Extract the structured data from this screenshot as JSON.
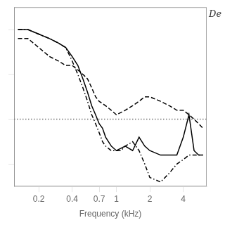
{
  "chart_data": {
    "type": "line",
    "xlabel": "Frequency (kHz)",
    "annotations": [
      {
        "text": "De"
      }
    ],
    "log": "x",
    "xlim": [
      0.12,
      6.5
    ],
    "ylim": [
      -15,
      25
    ],
    "xticks": [
      0.2,
      0.4,
      0.7,
      1,
      2,
      4
    ],
    "yticks": [
      -10,
      0,
      10,
      20
    ],
    "grid": false,
    "tick_labels": "x",
    "hlines": [
      {
        "value": 0,
        "color": "#777777",
        "line_style": "dotted"
      }
    ],
    "series": [
      {
        "x": [
          0.13,
          0.16,
          0.2,
          0.25,
          0.3,
          0.35,
          0.4,
          0.45,
          0.5,
          0.55,
          0.6,
          0.65,
          0.7,
          0.75,
          0.8,
          0.9,
          1.0,
          1.2,
          1.4,
          1.6,
          1.8,
          2.0,
          2.5,
          3.0,
          3.5,
          4.0,
          4.5,
          5.0,
          5.5,
          6.0
        ],
        "values": [
          20,
          20,
          19,
          18,
          17,
          16,
          14,
          12,
          9,
          6,
          3,
          1,
          -1,
          -2,
          -4,
          -6,
          -7,
          -6,
          -7,
          -4,
          -6,
          -7,
          -8,
          -8,
          -8,
          -4,
          1,
          -7,
          -8,
          -8
        ],
        "color": "#000000",
        "line_style": "solid"
      },
      {
        "x": [
          0.13,
          0.16,
          0.2,
          0.25,
          0.3,
          0.35,
          0.4,
          0.45,
          0.5,
          0.55,
          0.6,
          0.65,
          0.7,
          0.8,
          0.9,
          1.0,
          1.2,
          1.4,
          1.6,
          1.8,
          2.0,
          2.5,
          3.0,
          3.5,
          4.0,
          4.5,
          5.0,
          5.5,
          6.0
        ],
        "values": [
          18,
          18,
          16,
          14,
          13,
          12,
          12,
          11,
          10,
          9,
          7,
          5,
          4,
          3,
          2,
          1,
          2,
          3,
          4,
          5,
          5,
          4,
          3,
          2,
          2,
          1,
          0,
          -1,
          -2
        ],
        "color": "#000000",
        "line_style": "dashed"
      },
      {
        "x": [
          0.13,
          0.16,
          0.2,
          0.25,
          0.3,
          0.35,
          0.4,
          0.45,
          0.5,
          0.55,
          0.6,
          0.65,
          0.7,
          0.75,
          0.8,
          0.9,
          1.0,
          1.1,
          1.2,
          1.4,
          1.6,
          1.8,
          2.0,
          2.5,
          3.0,
          3.5,
          4.0,
          4.5,
          5.0,
          5.5,
          6.0
        ],
        "values": [
          20,
          20,
          19,
          18,
          17,
          16,
          13,
          10,
          7,
          4,
          1,
          -1,
          -3,
          -5,
          -6,
          -7,
          -7,
          -7,
          -6,
          -5,
          -7,
          -10,
          -13,
          -14,
          -12,
          -10,
          -9,
          -8,
          -8,
          -8,
          -8
        ],
        "color": "#000000",
        "line_style": "dashdot"
      }
    ]
  }
}
